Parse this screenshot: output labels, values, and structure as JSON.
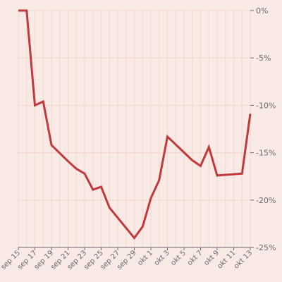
{
  "chart_data": {
    "type": "line",
    "title": "",
    "xlabel": "",
    "ylabel": "",
    "x_tick_labels": [
      "sep 15",
      "sep 17",
      "sep 19",
      "sep 21",
      "sep 23",
      "sep 25",
      "sep 27",
      "sep 29",
      "okt 1",
      "okt 3",
      "okt 5",
      "okt 7",
      "okt 9",
      "okt 11",
      "okt 13"
    ],
    "y_tick_labels": [
      "0%",
      "-5%",
      "-10%",
      "-15%",
      "-20%",
      "-25%"
    ],
    "y_ticks": [
      0,
      -5,
      -10,
      -15,
      -20,
      -25
    ],
    "ylim": [
      -25,
      0
    ],
    "xlim": [
      "2021-09-15",
      "2021-10-13"
    ],
    "grid": true,
    "y_axis_position": "right",
    "line_color": "#c0393b",
    "series": [
      {
        "x": [
          "2021-09-15",
          "2021-09-16",
          "2021-09-17",
          "2021-09-18",
          "2021-09-19",
          "2021-09-21",
          "2021-09-22",
          "2021-09-23",
          "2021-09-24",
          "2021-09-25",
          "2021-09-26",
          "2021-09-29",
          "2021-09-30",
          "2021-10-01",
          "2021-10-02",
          "2021-10-03",
          "2021-10-06",
          "2021-10-07",
          "2021-10-08",
          "2021-10-09",
          "2021-10-12",
          "2021-10-13"
        ],
        "y": [
          0,
          0,
          -10,
          -9.6,
          -14.2,
          -15.9,
          -16.7,
          -17.2,
          -18.9,
          -18.6,
          -20.8,
          -24.0,
          -22.8,
          -19.8,
          -17.9,
          -13.3,
          -15.8,
          -16.4,
          -14.4,
          -17.4,
          -17.2,
          -10.9
        ]
      }
    ]
  }
}
